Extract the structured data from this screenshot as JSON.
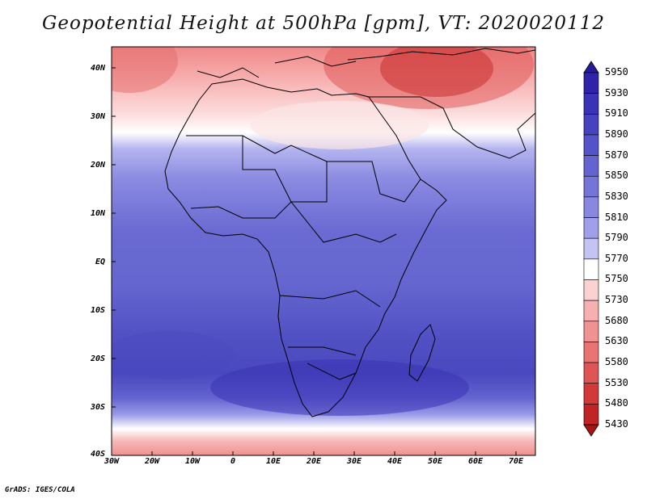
{
  "title": "Geopotential Height at 500hPa [gpm], VT: 2020020112",
  "credit": "GrADS: IGES/COLA",
  "lat_labels": [
    "40N",
    "30N",
    "20N",
    "10N",
    "EQ",
    "10S",
    "20S",
    "30S",
    "40S"
  ],
  "lon_labels": [
    "30W",
    "20W",
    "10W",
    "0",
    "10E",
    "20E",
    "30E",
    "40E",
    "50E",
    "60E",
    "70E"
  ],
  "colorbar": {
    "levels": [
      "5950",
      "5930",
      "5910",
      "5890",
      "5870",
      "5850",
      "5830",
      "5810",
      "5790",
      "5770",
      "5750",
      "5730",
      "5680",
      "5630",
      "5580",
      "5530",
      "5480",
      "5430"
    ],
    "colors": [
      "#241a9a",
      "#2f24a8",
      "#3a33b5",
      "#4743c0",
      "#5553c8",
      "#6464d0",
      "#7575d8",
      "#8888e0",
      "#a0a0ea",
      "#c4c4f4",
      "#ffffff",
      "#fbd2d2",
      "#f7b0b0",
      "#f09292",
      "#e87474",
      "#de5555",
      "#d23a3a",
      "#c02424",
      "#a81414"
    ]
  },
  "chart_data": {
    "type": "heatmap",
    "title": "Geopotential Height at 500hPa [gpm], VT: 2020020112",
    "variable": "Geopotential Height at 500hPa",
    "units": "gpm",
    "valid_time": "2020020112",
    "lon_range": [
      -30,
      75
    ],
    "lat_range": [
      -40,
      45
    ],
    "x_ticks": [
      "30W",
      "20W",
      "10W",
      "0",
      "10E",
      "20E",
      "30E",
      "40E",
      "50E",
      "60E",
      "70E"
    ],
    "y_ticks": [
      "40N",
      "30N",
      "20N",
      "10N",
      "EQ",
      "10S",
      "20S",
      "30S",
      "40S"
    ],
    "levels": [
      5430,
      5480,
      5530,
      5580,
      5630,
      5680,
      5730,
      5750,
      5770,
      5790,
      5810,
      5830,
      5850,
      5870,
      5890,
      5910,
      5930,
      5950
    ],
    "colormap": "red (low) to white to blue (high)"
  }
}
